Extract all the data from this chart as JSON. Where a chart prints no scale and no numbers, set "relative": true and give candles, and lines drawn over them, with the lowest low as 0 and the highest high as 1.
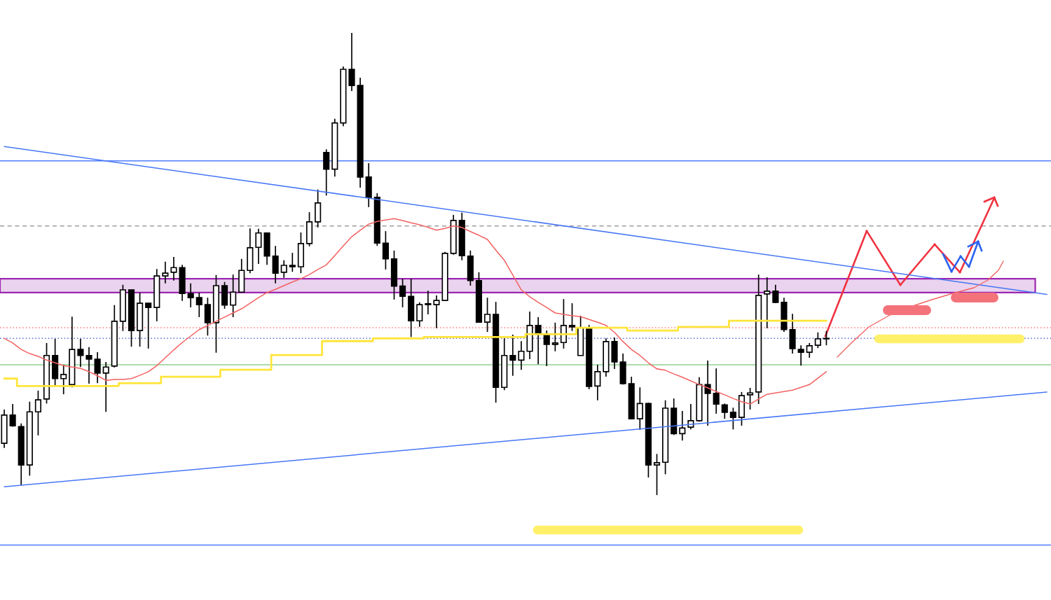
{
  "chart_data": {
    "type": "candlestick",
    "relative": true,
    "categories": [
      null,
      null,
      null,
      null,
      null,
      null,
      null,
      null,
      null,
      null,
      null,
      null,
      null,
      null,
      null,
      null,
      null,
      null,
      null,
      null,
      null,
      null,
      null,
      null,
      null,
      null,
      null,
      null,
      null,
      null,
      null,
      null,
      null,
      null,
      null,
      null,
      null,
      null,
      null,
      null,
      null,
      null,
      null,
      null,
      null,
      null,
      null,
      null,
      null,
      null,
      null,
      null,
      null,
      null,
      null,
      null,
      null,
      null,
      null,
      null,
      null,
      null,
      null,
      null,
      null,
      null,
      null,
      null,
      null,
      null,
      null,
      null,
      null,
      null,
      null,
      null,
      null,
      null,
      null,
      null,
      null,
      null,
      null,
      null,
      null,
      null,
      null,
      null,
      null,
      null,
      null,
      null,
      null,
      null,
      null,
      null,
      null,
      null,
      null,
      null,
      null,
      null,
      null,
      null,
      null,
      null,
      null,
      null,
      null,
      null,
      null,
      null,
      null,
      null,
      null,
      null,
      null,
      null,
      null,
      null,
      null,
      null,
      null,
      null
    ],
    "ohlc": [
      [
        0.112,
        0.185,
        0.102,
        0.173
      ],
      [
        0.173,
        0.197,
        0.148,
        0.15
      ],
      [
        0.148,
        0.155,
        0.021,
        0.065
      ],
      [
        0.065,
        0.202,
        0.042,
        0.18
      ],
      [
        0.18,
        0.226,
        0.129,
        0.206
      ],
      [
        0.208,
        0.329,
        0.198,
        0.302
      ],
      [
        0.302,
        0.338,
        0.236,
        0.252
      ],
      [
        0.252,
        0.282,
        0.218,
        0.261
      ],
      [
        0.239,
        0.386,
        0.233,
        0.315
      ],
      [
        0.315,
        0.338,
        0.277,
        0.302
      ],
      [
        0.302,
        0.32,
        0.241,
        0.294
      ],
      [
        0.294,
        0.309,
        0.242,
        0.264
      ],
      [
        0.264,
        0.288,
        0.18,
        0.277
      ],
      [
        0.279,
        0.411,
        0.276,
        0.376
      ],
      [
        0.376,
        0.455,
        0.355,
        0.444
      ],
      [
        0.444,
        0.444,
        0.321,
        0.356
      ],
      [
        0.356,
        0.438,
        0.321,
        0.415
      ],
      [
        0.415,
        0.415,
        0.317,
        0.406
      ],
      [
        0.406,
        0.489,
        0.376,
        0.474
      ],
      [
        0.474,
        0.505,
        0.458,
        0.48
      ],
      [
        0.482,
        0.515,
        0.464,
        0.492
      ],
      [
        0.492,
        0.498,
        0.42,
        0.436
      ],
      [
        0.436,
        0.458,
        0.406,
        0.427
      ],
      [
        0.427,
        0.438,
        0.385,
        0.412
      ],
      [
        0.412,
        0.427,
        0.345,
        0.373
      ],
      [
        0.373,
        0.476,
        0.308,
        0.453
      ],
      [
        0.453,
        0.461,
        0.403,
        0.411
      ],
      [
        0.411,
        0.477,
        0.385,
        0.439
      ],
      [
        0.439,
        0.511,
        0.439,
        0.486
      ],
      [
        0.486,
        0.577,
        0.48,
        0.535
      ],
      [
        0.536,
        0.576,
        0.5,
        0.567
      ],
      [
        0.567,
        0.568,
        0.498,
        0.517
      ],
      [
        0.517,
        0.539,
        0.458,
        0.48
      ],
      [
        0.482,
        0.508,
        0.47,
        0.497
      ],
      [
        0.497,
        0.524,
        0.483,
        0.494
      ],
      [
        0.494,
        0.568,
        0.48,
        0.544
      ],
      [
        0.544,
        0.612,
        0.538,
        0.591
      ],
      [
        0.591,
        0.661,
        0.579,
        0.632
      ],
      [
        0.741,
        0.748,
        0.648,
        0.705
      ],
      [
        0.705,
        0.814,
        0.689,
        0.805
      ],
      [
        0.805,
        0.927,
        0.798,
        0.921
      ],
      [
        0.921,
        1.0,
        0.874,
        0.886
      ],
      [
        0.886,
        0.903,
        0.665,
        0.688
      ],
      [
        0.688,
        0.718,
        0.623,
        0.644
      ],
      [
        0.644,
        0.653,
        0.539,
        0.545
      ],
      [
        0.545,
        0.571,
        0.488,
        0.511
      ],
      [
        0.511,
        0.529,
        0.423,
        0.452
      ],
      [
        0.452,
        0.468,
        0.406,
        0.43
      ],
      [
        0.43,
        0.468,
        0.342,
        0.377
      ],
      [
        0.377,
        0.417,
        0.364,
        0.412
      ],
      [
        0.414,
        0.442,
        0.391,
        0.412
      ],
      [
        0.412,
        0.432,
        0.361,
        0.421
      ],
      [
        0.421,
        0.526,
        0.421,
        0.523
      ],
      [
        0.523,
        0.606,
        0.52,
        0.594
      ],
      [
        0.594,
        0.611,
        0.508,
        0.518
      ],
      [
        0.517,
        0.529,
        0.453,
        0.464
      ],
      [
        0.464,
        0.482,
        0.374,
        0.374
      ],
      [
        0.374,
        0.427,
        0.353,
        0.391
      ],
      [
        0.391,
        0.418,
        0.2,
        0.233
      ],
      [
        0.233,
        0.339,
        0.227,
        0.302
      ],
      [
        0.302,
        0.347,
        0.258,
        0.292
      ],
      [
        0.292,
        0.333,
        0.271,
        0.311
      ],
      [
        0.311,
        0.397,
        0.294,
        0.367
      ],
      [
        0.367,
        0.385,
        0.283,
        0.348
      ],
      [
        0.347,
        0.356,
        0.279,
        0.326
      ],
      [
        0.326,
        0.373,
        0.311,
        0.329
      ],
      [
        0.33,
        0.424,
        0.317,
        0.367
      ],
      [
        0.367,
        0.415,
        0.355,
        0.364
      ],
      [
        0.302,
        0.388,
        0.302,
        0.362
      ],
      [
        0.362,
        0.368,
        0.229,
        0.235
      ],
      [
        0.236,
        0.282,
        0.205,
        0.267
      ],
      [
        0.267,
        0.339,
        0.256,
        0.332
      ],
      [
        0.332,
        0.341,
        0.273,
        0.288
      ],
      [
        0.288,
        0.306,
        0.239,
        0.241
      ],
      [
        0.241,
        0.256,
        0.164,
        0.165
      ],
      [
        0.165,
        0.233,
        0.141,
        0.198
      ],
      [
        0.198,
        0.2,
        0.038,
        0.065
      ],
      [
        0.065,
        0.089,
        0.0,
        0.07
      ],
      [
        0.071,
        0.205,
        0.045,
        0.188
      ],
      [
        0.188,
        0.209,
        0.13,
        0.133
      ],
      [
        0.133,
        0.182,
        0.118,
        0.145
      ],
      [
        0.147,
        0.197,
        0.142,
        0.161
      ],
      [
        0.161,
        0.255,
        0.159,
        0.239
      ],
      [
        0.239,
        0.291,
        0.15,
        0.22
      ],
      [
        0.22,
        0.274,
        0.176,
        0.197
      ],
      [
        0.195,
        0.198,
        0.165,
        0.179
      ],
      [
        0.179,
        0.189,
        0.142,
        0.168
      ],
      [
        0.168,
        0.223,
        0.15,
        0.215
      ],
      [
        0.217,
        0.232,
        0.185,
        0.221
      ],
      [
        0.223,
        0.477,
        0.197,
        0.432
      ],
      [
        0.435,
        0.471,
        0.361,
        0.441
      ],
      [
        0.441,
        0.455,
        0.415,
        0.417
      ],
      [
        0.417,
        0.427,
        0.353,
        0.358
      ],
      [
        0.358,
        0.392,
        0.306,
        0.317
      ],
      [
        0.315,
        0.324,
        0.28,
        0.309
      ],
      [
        0.309,
        0.329,
        0.297,
        0.323
      ],
      [
        0.324,
        0.352,
        0.318,
        0.338
      ],
      [
        0.338,
        0.355,
        0.324,
        0.339
      ],
      null,
      null,
      null,
      null,
      null,
      null,
      null,
      null,
      null,
      null,
      null,
      null,
      null,
      null,
      null,
      null,
      null,
      null,
      null,
      null,
      null,
      null,
      null,
      null,
      null,
      null
    ],
    "series": [
      {
        "type": "line",
        "color": "#f46262",
        "values": [
          0.339,
          0.329,
          0.315,
          0.306,
          0.3,
          0.292,
          0.286,
          0.28,
          0.277,
          0.274,
          0.267,
          0.258,
          0.248,
          0.25,
          0.25,
          0.252,
          0.259,
          0.267,
          0.28,
          0.297,
          0.314,
          0.33,
          0.344,
          0.358,
          0.367,
          0.376,
          0.385,
          0.394,
          0.403,
          0.415,
          0.427,
          0.438,
          0.445,
          0.453,
          0.461,
          0.468,
          0.477,
          0.488,
          0.498,
          0.518,
          0.539,
          0.559,
          0.573,
          0.586,
          0.592,
          0.595,
          0.598,
          0.594,
          0.589,
          0.585,
          0.579,
          0.573,
          0.577,
          0.582,
          0.579,
          0.57,
          0.562,
          0.553,
          0.53,
          0.508,
          0.476,
          0.444,
          0.429,
          0.417,
          0.406,
          0.394,
          0.391,
          0.388,
          0.386,
          0.38,
          0.374,
          0.367,
          0.352,
          0.332,
          0.315,
          0.302,
          0.286,
          0.273,
          0.27,
          0.262,
          0.255,
          0.247,
          0.239,
          0.232,
          0.224,
          0.217,
          0.209,
          0.202,
          0.197,
          0.208,
          0.218,
          0.221,
          0.224,
          0.227,
          0.233,
          0.239,
          0.253,
          0.267,
          null,
          null,
          null,
          null,
          null,
          null,
          null,
          null,
          null,
          null,
          null,
          null,
          null,
          null,
          null,
          null,
          null,
          null,
          null,
          null,
          null,
          null,
          null,
          null,
          null,
          null
        ]
      },
      {
        "type": "step",
        "color": "#ffe53b",
        "values": [
          0.252,
          0.252,
          0.236,
          0.236,
          0.236,
          0.236,
          0.236,
          0.236,
          0.236,
          0.236,
          0.236,
          0.236,
          0.236,
          0.236,
          0.242,
          0.242,
          0.242,
          0.242,
          0.242,
          0.256,
          0.256,
          0.256,
          0.256,
          0.256,
          0.256,
          0.256,
          0.271,
          0.271,
          0.271,
          0.271,
          0.271,
          0.271,
          0.303,
          0.303,
          0.303,
          0.303,
          0.303,
          0.303,
          0.333,
          0.333,
          0.333,
          0.333,
          0.333,
          0.333,
          0.339,
          0.339,
          0.339,
          0.339,
          0.339,
          0.339,
          0.342,
          0.342,
          0.342,
          0.342,
          0.342,
          0.342,
          0.342,
          0.342,
          0.342,
          0.342,
          0.342,
          0.342,
          0.348,
          0.348,
          0.348,
          0.348,
          0.348,
          0.348,
          0.362,
          0.362,
          0.362,
          0.362,
          0.362,
          0.362,
          0.356,
          0.356,
          0.356,
          0.356,
          0.356,
          0.356,
          0.364,
          0.364,
          0.364,
          0.364,
          0.364,
          0.364,
          0.377,
          0.377,
          0.377,
          0.377,
          0.377,
          0.377,
          0.377,
          0.377,
          0.377,
          0.377,
          0.377,
          0.377,
          null,
          null,
          null,
          null,
          null,
          null,
          null,
          null,
          null,
          null,
          null,
          null,
          null,
          null,
          null,
          null,
          null,
          null,
          null,
          null,
          null,
          null,
          null,
          null,
          null,
          null
        ]
      },
      {
        "type": "line",
        "color": "#4677f5",
        "values": [
          0.754,
          null,
          null,
          null,
          null,
          null,
          null,
          null,
          null,
          null,
          null,
          null,
          null,
          null,
          null,
          null,
          null,
          null,
          null,
          null,
          null,
          null,
          null,
          null,
          null,
          null,
          null,
          null,
          null,
          null,
          null,
          null,
          null,
          null,
          null,
          null,
          null,
          null,
          null,
          null,
          null,
          null,
          null,
          null,
          null,
          null,
          null,
          null,
          null,
          null,
          null,
          null,
          null,
          null,
          null,
          null,
          null,
          null,
          null,
          null,
          null,
          null,
          null,
          null,
          null,
          null,
          null,
          null,
          null,
          null,
          null,
          null,
          null,
          null,
          null,
          null,
          null,
          null,
          null,
          null,
          null,
          null,
          null,
          null,
          null,
          null,
          null,
          null,
          null,
          null,
          null,
          null,
          null,
          null,
          null,
          null,
          null,
          null,
          null,
          null,
          null,
          null,
          null,
          null,
          null,
          null,
          null,
          null,
          null,
          null,
          null,
          null,
          null,
          null,
          null,
          null,
          null,
          null,
          null,
          null,
          null,
          null,
          null,
          0.434
        ]
      },
      {
        "type": "line",
        "color": "#4677f5",
        "values": [
          0.018,
          null,
          null,
          null,
          null,
          null,
          null,
          null,
          null,
          null,
          null,
          null,
          null,
          null,
          null,
          null,
          null,
          null,
          null,
          null,
          null,
          null,
          null,
          null,
          null,
          null,
          null,
          null,
          null,
          null,
          null,
          null,
          null,
          null,
          null,
          null,
          null,
          null,
          null,
          null,
          null,
          null,
          null,
          null,
          null,
          null,
          null,
          null,
          null,
          null,
          null,
          null,
          null,
          null,
          null,
          null,
          null,
          null,
          null,
          null,
          null,
          null,
          null,
          null,
          null,
          null,
          null,
          null,
          null,
          null,
          null,
          null,
          null,
          null,
          null,
          null,
          null,
          null,
          null,
          null,
          null,
          null,
          null,
          null,
          null,
          null,
          null,
          null,
          null,
          null,
          null,
          null,
          null,
          null,
          null,
          null,
          null,
          null,
          null,
          null,
          null,
          null,
          null,
          null,
          null,
          null,
          null,
          null,
          null,
          null,
          null,
          null,
          null,
          null,
          null,
          null,
          null,
          null,
          null,
          null,
          null,
          null,
          null,
          0.223
        ]
      }
    ],
    "ref_lines": [
      {
        "axis": "y",
        "value": 0.723,
        "color": "#4f7dff",
        "line_style": "solid"
      },
      {
        "axis": "y",
        "value": 0.582,
        "color": "#9e9e9e",
        "line_style": "dashed"
      },
      {
        "axis": "y",
        "value": 0.362,
        "color": "#ff8a8a",
        "line_style": "dotted"
      },
      {
        "axis": "y",
        "value": 0.339,
        "color": "#5a6bd6",
        "line_style": "dotted"
      },
      {
        "axis": "y",
        "value": 0.282,
        "color": "#8fd18f",
        "line_style": "solid"
      },
      {
        "axis": "y",
        "value": -0.108,
        "color": "#4f7dff",
        "line_style": "solid"
      }
    ],
    "bands": [
      {
        "axis": "y",
        "from": 0.438,
        "to": 0.468,
        "color": "#9c27b0"
      }
    ]
  }
}
